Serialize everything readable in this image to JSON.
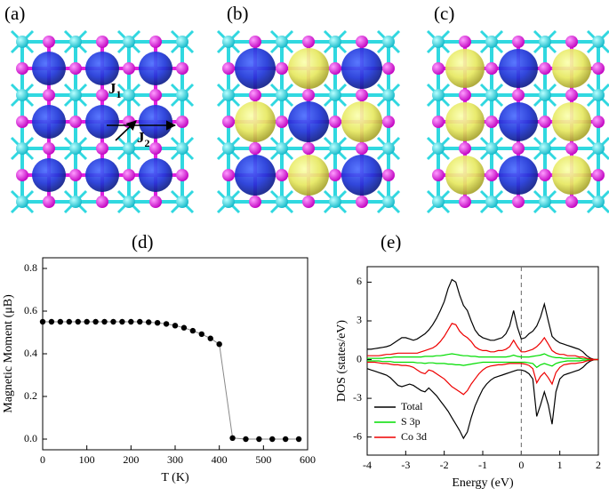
{
  "panels": [
    {
      "label": "(a)",
      "annotations": [
        {
          "symbol": "J",
          "subscript": "1"
        },
        {
          "symbol": "J",
          "subscript": "2"
        }
      ]
    },
    {
      "label": "(b)"
    },
    {
      "label": "(c)"
    }
  ],
  "chart_data": [
    {
      "type": "line",
      "panel_label": "(d)",
      "xlabel": "T (K)",
      "ylabel": "Magnetic Moment (μB)",
      "x": [
        0,
        20,
        40,
        60,
        80,
        100,
        120,
        140,
        160,
        180,
        200,
        220,
        240,
        260,
        280,
        300,
        320,
        340,
        360,
        380,
        400,
        430,
        460,
        490,
        520,
        550,
        580
      ],
      "values": [
        0.55,
        0.55,
        0.55,
        0.55,
        0.55,
        0.55,
        0.55,
        0.55,
        0.55,
        0.55,
        0.55,
        0.55,
        0.548,
        0.545,
        0.54,
        0.532,
        0.522,
        0.508,
        0.492,
        0.472,
        0.445,
        0.005,
        0,
        0,
        0,
        0,
        0
      ],
      "color": "#000000",
      "line_color": "#888888",
      "markers": true,
      "xlim": [
        0,
        600
      ],
      "xticks": [
        0,
        100,
        200,
        300,
        400,
        500,
        600
      ],
      "ylim": [
        -0.05,
        0.85
      ],
      "yticks": [
        {
          "value": 0,
          "label": "0.0"
        },
        {
          "value": 0.2,
          "label": "0.2"
        },
        {
          "value": 0.4,
          "label": "0.4"
        },
        {
          "value": 0.6,
          "label": "0.6"
        },
        {
          "value": 0.8,
          "label": "0.8"
        }
      ]
    },
    {
      "type": "line",
      "panel_label": "(e)",
      "xlabel": "Energy (eV)",
      "ylabel": "DOS (states/eV)",
      "x": [
        -4,
        -3.9,
        -3.8,
        -3.7,
        -3.6,
        -3.5,
        -3.4,
        -3.3,
        -3.2,
        -3.1,
        -3,
        -2.9,
        -2.8,
        -2.7,
        -2.6,
        -2.5,
        -2.4,
        -2.3,
        -2.2,
        -2.1,
        -2,
        -1.9,
        -1.8,
        -1.7,
        -1.6,
        -1.5,
        -1.4,
        -1.3,
        -1.2,
        -1.1,
        -1,
        -0.9,
        -0.8,
        -0.7,
        -0.6,
        -0.5,
        -0.4,
        -0.3,
        -0.2,
        -0.1,
        0,
        0.1,
        0.2,
        0.3,
        0.4,
        0.5,
        0.6,
        0.7,
        0.8,
        0.9,
        1,
        1.1,
        1.2,
        1.3,
        1.4,
        1.5,
        1.6,
        1.7,
        1.8,
        1.9,
        2
      ],
      "series": [
        {
          "name": "Total",
          "color": "#000000",
          "values": [
            0.8,
            0.8,
            0.85,
            0.9,
            0.95,
            1.0,
            1.1,
            1.3,
            1.5,
            1.7,
            1.7,
            1.6,
            1.5,
            1.6,
            1.8,
            2.0,
            2.3,
            2.7,
            3.2,
            3.8,
            4.5,
            5.5,
            6.2,
            6.0,
            5.0,
            4.2,
            3.8,
            3.0,
            2.3,
            1.9,
            1.7,
            1.6,
            1.5,
            1.5,
            1.6,
            1.7,
            2.0,
            2.6,
            3.8,
            2.5,
            1.6,
            1.7,
            2.0,
            2.2,
            2.6,
            3.3,
            4.3,
            3.0,
            1.8,
            1.5,
            1.3,
            1.2,
            1.1,
            1.0,
            0.9,
            0.8,
            0.6,
            0.3,
            0.1,
            0,
            0
          ],
          "values_down": [
            -0.7,
            -0.8,
            -0.9,
            -1.0,
            -1.1,
            -1.2,
            -1.4,
            -1.7,
            -2.0,
            -2.1,
            -2.0,
            -1.9,
            -2.0,
            -2.2,
            -2.4,
            -2.5,
            -2.2,
            -2.5,
            -2.8,
            -3.2,
            -3.6,
            -4.0,
            -4.5,
            -5.0,
            -5.5,
            -6.1,
            -5.6,
            -4.5,
            -3.6,
            -2.9,
            -2.3,
            -1.9,
            -1.6,
            -1.4,
            -1.3,
            -1.2,
            -1.1,
            -1.0,
            -0.9,
            -0.8,
            -0.8,
            -0.9,
            -1.1,
            -1.5,
            -4.4,
            -3.5,
            -2.5,
            -3.5,
            -5.0,
            -2.5,
            -1.5,
            -1.2,
            -1.1,
            -1.0,
            -0.9,
            -0.8,
            -0.6,
            -0.3,
            -0.1,
            0,
            0
          ]
        },
        {
          "name": "S 3p",
          "color": "#00dd00",
          "values": [
            0.1,
            0.1,
            0.1,
            0.1,
            0.1,
            0.15,
            0.15,
            0.2,
            0.2,
            0.2,
            0.2,
            0.2,
            0.2,
            0.2,
            0.2,
            0.25,
            0.25,
            0.25,
            0.3,
            0.3,
            0.35,
            0.4,
            0.45,
            0.4,
            0.35,
            0.3,
            0.3,
            0.25,
            0.25,
            0.2,
            0.2,
            0.2,
            0.2,
            0.2,
            0.2,
            0.2,
            0.2,
            0.25,
            0.35,
            0.25,
            0.2,
            0.2,
            0.2,
            0.25,
            0.3,
            0.35,
            0.45,
            0.3,
            0.2,
            0.15,
            0.15,
            0.1,
            0.1,
            0.1,
            0.1,
            0.1,
            0.05,
            0.05,
            0,
            0,
            0
          ],
          "values_down": [
            -0.1,
            -0.1,
            -0.1,
            -0.1,
            -0.15,
            -0.15,
            -0.15,
            -0.2,
            -0.2,
            -0.2,
            -0.2,
            -0.2,
            -0.2,
            -0.25,
            -0.25,
            -0.3,
            -0.25,
            -0.25,
            -0.3,
            -0.3,
            -0.3,
            -0.35,
            -0.35,
            -0.4,
            -0.4,
            -0.45,
            -0.4,
            -0.35,
            -0.3,
            -0.25,
            -0.2,
            -0.2,
            -0.2,
            -0.2,
            -0.2,
            -0.2,
            -0.2,
            -0.2,
            -0.2,
            -0.2,
            -0.2,
            -0.2,
            -0.25,
            -0.3,
            -0.6,
            -0.4,
            -0.3,
            -0.4,
            -0.5,
            -0.3,
            -0.2,
            -0.15,
            -0.1,
            -0.1,
            -0.1,
            -0.1,
            -0.05,
            -0.05,
            0,
            0,
            0
          ]
        },
        {
          "name": "Co 3d",
          "color": "#ee0000",
          "values": [
            0.3,
            0.3,
            0.3,
            0.3,
            0.35,
            0.4,
            0.4,
            0.45,
            0.5,
            0.5,
            0.5,
            0.5,
            0.5,
            0.5,
            0.6,
            0.7,
            0.8,
            0.9,
            1.1,
            1.4,
            1.8,
            2.3,
            2.8,
            2.7,
            2.2,
            1.9,
            1.7,
            1.4,
            1.0,
            0.8,
            0.7,
            0.7,
            0.6,
            0.6,
            0.7,
            0.7,
            0.8,
            1.0,
            1.5,
            1.0,
            0.6,
            0.6,
            0.7,
            0.8,
            1.0,
            1.3,
            1.7,
            1.2,
            0.7,
            0.5,
            0.4,
            0.4,
            0.3,
            0.3,
            0.3,
            0.2,
            0.2,
            0.1,
            0.05,
            0,
            0
          ],
          "values_down": [
            -0.2,
            -0.2,
            -0.2,
            -0.25,
            -0.3,
            -0.3,
            -0.35,
            -0.4,
            -0.4,
            -0.45,
            -0.45,
            -0.5,
            -0.6,
            -0.8,
            -1.0,
            -1.1,
            -0.8,
            -0.9,
            -1.1,
            -1.3,
            -1.5,
            -1.8,
            -2.1,
            -2.3,
            -2.5,
            -2.7,
            -2.4,
            -1.9,
            -1.5,
            -1.1,
            -0.8,
            -0.6,
            -0.5,
            -0.45,
            -0.4,
            -0.4,
            -0.35,
            -0.3,
            -0.3,
            -0.3,
            -0.3,
            -0.35,
            -0.45,
            -0.7,
            -1.8,
            -1.3,
            -1.0,
            -1.4,
            -1.9,
            -1.0,
            -0.6,
            -0.4,
            -0.35,
            -0.3,
            -0.3,
            -0.25,
            -0.2,
            -0.1,
            -0.05,
            0,
            0
          ]
        }
      ],
      "vline": 0,
      "legend": "lower left",
      "xlim": [
        -4,
        2
      ],
      "xticks": [
        -4,
        -3,
        -2,
        -1,
        0,
        1,
        2
      ],
      "ylim": [
        -7.4,
        7.2
      ],
      "yticks": [
        -6,
        -3,
        0,
        3,
        6
      ]
    }
  ]
}
